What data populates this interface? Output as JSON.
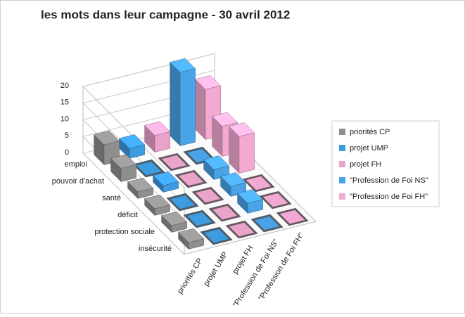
{
  "chart_data": {
    "type": "bar3d",
    "title": "les mots dans leur campagne - 30 avril 2012",
    "categories": [
      "emploi",
      "pouvoir d'achat",
      "santé",
      "déficit",
      "protection sociale",
      "insécurité"
    ],
    "series": [
      {
        "name": "priorités CP",
        "color": "#8e8e8e",
        "values": [
          6,
          4,
          2,
          2,
          2,
          2
        ]
      },
      {
        "name": "projet UMP",
        "color": "#3d9be0",
        "values": [
          3,
          0,
          2,
          0,
          0,
          0
        ]
      },
      {
        "name": "projet FH",
        "color": "#eaa3cb",
        "values": [
          5,
          0,
          0,
          0,
          0,
          0
        ]
      },
      {
        "name": "\"Profession de Foi NS\"",
        "color": "#4aa3e6",
        "values": [
          22,
          0,
          3,
          3,
          3,
          0
        ]
      },
      {
        "name": "\"Profession de Foi FH\"",
        "color": "#f2a9d2",
        "values": [
          15,
          9,
          11,
          0,
          0,
          0
        ]
      }
    ],
    "ylim": [
      0,
      20
    ],
    "yticks": [
      0,
      5,
      10,
      15,
      20
    ],
    "grid": true,
    "legend": "right"
  }
}
